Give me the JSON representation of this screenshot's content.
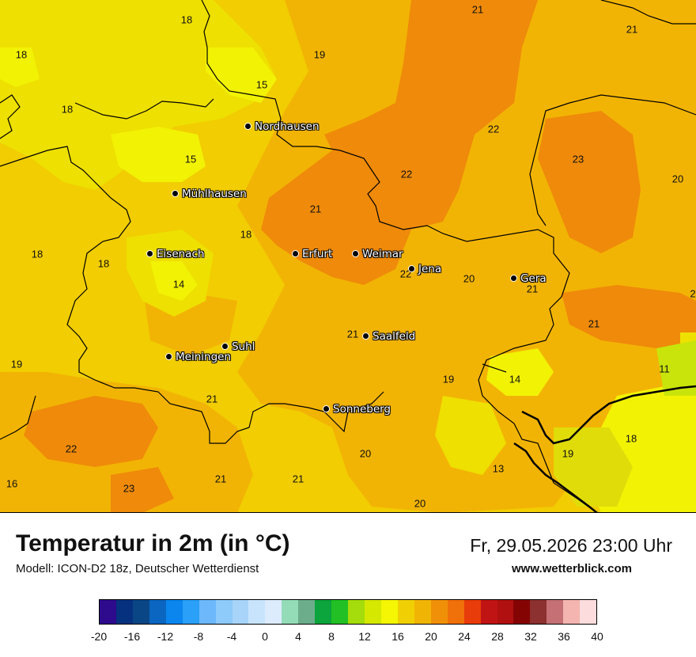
{
  "map": {
    "colors": {
      "t13": "#e0dc0a",
      "t14": "#f2f204",
      "t16": "#eee000",
      "t18": "#f1cd02",
      "t20": "#f2b404",
      "t22": "#ef8a0a",
      "t11": "#c8e40a"
    },
    "value_labels": [
      "18",
      "18",
      "18",
      "18",
      "15",
      "19",
      "21",
      "21",
      "22",
      "23",
      "20",
      "15",
      "22",
      "21",
      "18",
      "18",
      "19",
      "14",
      "22",
      "20",
      "21",
      "21",
      "21",
      "19",
      "21",
      "19",
      "14",
      "11",
      "22",
      "21",
      "18",
      "16",
      "23",
      "21",
      "21",
      "20",
      "13",
      "19",
      "20",
      "2"
    ],
    "cities": [
      "Nordhausen",
      "Mühlhausen",
      "Eisenach",
      "Erfurt",
      "Weimar",
      "Jena",
      "Gera",
      "Saalfeld",
      "Suhl",
      "Meiningen",
      "Sonneberg"
    ]
  },
  "header": {
    "title": "Temperatur in 2m (in °C)",
    "model": "Modell: ICON-D2 18z, Deutscher Wetterdienst",
    "datetime": "Fr, 29.05.2026 23:00 Uhr",
    "site": "www.wetterblick.com"
  },
  "legend": {
    "colors": [
      "#2e0a8c",
      "#06317e",
      "#0a4686",
      "#0a66c0",
      "#0a86ee",
      "#2aa0f8",
      "#6cb8fa",
      "#8ecafa",
      "#a8d4fa",
      "#c8e4fc",
      "#dcecfc",
      "#94dcb8",
      "#6cae8c",
      "#0ca43c",
      "#22c024",
      "#a4dc0c",
      "#d4e800",
      "#f4f604",
      "#f0d004",
      "#f0b404",
      "#f09008",
      "#f0700a",
      "#e83c0a",
      "#c01414",
      "#b01010",
      "#840404",
      "#8c3030",
      "#c47074",
      "#f4b4b0",
      "#fcdcdc"
    ],
    "ticks": [
      "-20",
      "-16",
      "-12",
      "-8",
      "-4",
      "0",
      "4",
      "8",
      "12",
      "16",
      "20",
      "24",
      "28",
      "32",
      "36",
      "40"
    ]
  }
}
